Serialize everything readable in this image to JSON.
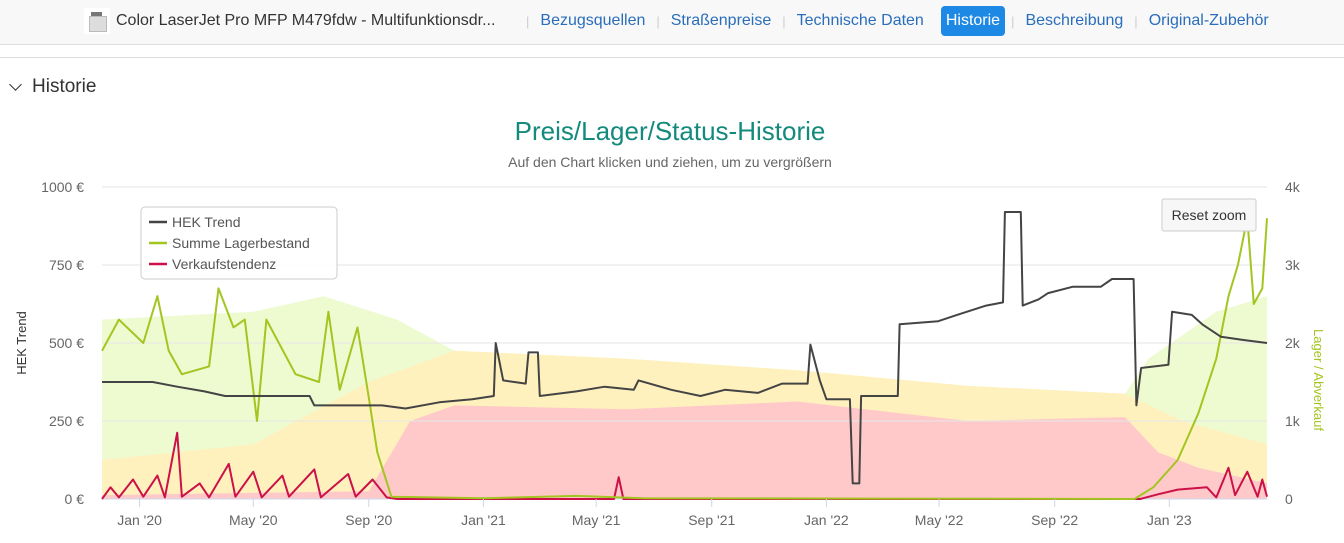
{
  "header": {
    "product_title": "Color LaserJet Pro MFP M479fdw - Multifunktionsdr...",
    "nav": [
      "Bezugsquellen",
      "Straßenpreise",
      "Technische Daten",
      "Historie",
      "Beschreibung",
      "Original-Zubehör"
    ],
    "active_nav": "Historie"
  },
  "section": {
    "title": "Historie"
  },
  "chart_data": {
    "type": "line",
    "title": "Preis/Lager/Status-Historie",
    "subtitle": "Auf den Chart klicken und ziehen, um zu vergrößern",
    "ylabel": "HEK Trend",
    "y2label": "Lager / Abverkauf",
    "ylim": [
      0,
      1000
    ],
    "y2lim": [
      0,
      4000
    ],
    "yticks": [
      "0 €",
      "250 €",
      "500 €",
      "750 €",
      "1000 €"
    ],
    "y2ticks": [
      "0",
      "1k",
      "2k",
      "3k",
      "4k"
    ],
    "xlim": [
      "2019-11-22",
      "2023-04-15"
    ],
    "xticks": [
      [
        "2020-01-01",
        "Jan '20"
      ],
      [
        "2020-05-01",
        "May '20"
      ],
      [
        "2020-09-01",
        "Sep '20"
      ],
      [
        "2021-01-01",
        "Jan '21"
      ],
      [
        "2021-05-01",
        "May '21"
      ],
      [
        "2021-09-01",
        "Sep '21"
      ],
      [
        "2022-01-01",
        "Jan '22"
      ],
      [
        "2022-05-01",
        "May '22"
      ],
      [
        "2022-09-01",
        "Sep '22"
      ],
      [
        "2023-01-01",
        "Jan '23"
      ]
    ],
    "grid": true,
    "legend_position": "top-left",
    "reset_zoom_label": "Reset zoom",
    "colors": {
      "hek": "#444444",
      "lager": "#a3c520",
      "verkauf": "#cc1149",
      "band_red": "#ffc9c9",
      "band_yellow": "#fff1bd",
      "band_green": "#eefad0",
      "title": "#138a7c"
    },
    "series": [
      {
        "name": "HEK Trend",
        "axis": "left",
        "color": "#444444",
        "points": [
          [
            "2019-11-22",
            375
          ],
          [
            "2020-01-15",
            375
          ],
          [
            "2020-02-10",
            360
          ],
          [
            "2020-03-10",
            345
          ],
          [
            "2020-04-01",
            330
          ],
          [
            "2020-06-30",
            330
          ],
          [
            "2020-07-05",
            300
          ],
          [
            "2020-09-15",
            300
          ],
          [
            "2020-10-10",
            290
          ],
          [
            "2020-11-15",
            310
          ],
          [
            "2020-12-20",
            320
          ],
          [
            "2021-01-12",
            330
          ],
          [
            "2021-01-14",
            500
          ],
          [
            "2021-01-22",
            380
          ],
          [
            "2021-02-15",
            370
          ],
          [
            "2021-02-18",
            470
          ],
          [
            "2021-02-28",
            470
          ],
          [
            "2021-03-02",
            330
          ],
          [
            "2021-04-10",
            345
          ],
          [
            "2021-05-10",
            360
          ],
          [
            "2021-06-10",
            350
          ],
          [
            "2021-06-15",
            380
          ],
          [
            "2021-07-20",
            350
          ],
          [
            "2021-08-20",
            330
          ],
          [
            "2021-09-15",
            350
          ],
          [
            "2021-10-20",
            340
          ],
          [
            "2021-11-15",
            370
          ],
          [
            "2021-12-12",
            370
          ],
          [
            "2021-12-15",
            495
          ],
          [
            "2021-12-25",
            380
          ],
          [
            "2022-01-01",
            320
          ],
          [
            "2022-01-26",
            320
          ],
          [
            "2022-01-29",
            50
          ],
          [
            "2022-02-05",
            50
          ],
          [
            "2022-02-07",
            330
          ],
          [
            "2022-03-18",
            330
          ],
          [
            "2022-03-20",
            560
          ],
          [
            "2022-04-30",
            570
          ],
          [
            "2022-05-20",
            590
          ],
          [
            "2022-06-20",
            620
          ],
          [
            "2022-07-08",
            630
          ],
          [
            "2022-07-10",
            920
          ],
          [
            "2022-07-27",
            920
          ],
          [
            "2022-07-29",
            620
          ],
          [
            "2022-08-15",
            640
          ],
          [
            "2022-08-25",
            660
          ],
          [
            "2022-09-20",
            680
          ],
          [
            "2022-10-20",
            680
          ],
          [
            "2022-11-01",
            705
          ],
          [
            "2022-11-24",
            705
          ],
          [
            "2022-11-27",
            300
          ],
          [
            "2022-12-02",
            420
          ],
          [
            "2022-12-31",
            430
          ],
          [
            "2023-01-04",
            600
          ],
          [
            "2023-01-25",
            590
          ],
          [
            "2023-02-05",
            560
          ],
          [
            "2023-02-25",
            520
          ],
          [
            "2023-03-20",
            510
          ],
          [
            "2023-04-15",
            500
          ]
        ]
      },
      {
        "name": "Summe Lagerbestand",
        "axis": "right",
        "color": "#a3c520",
        "points": [
          [
            "2019-11-22",
            1900
          ],
          [
            "2019-12-10",
            2300
          ],
          [
            "2020-01-05",
            2000
          ],
          [
            "2020-01-20",
            2600
          ],
          [
            "2020-02-01",
            1900
          ],
          [
            "2020-02-15",
            1600
          ],
          [
            "2020-03-15",
            1700
          ],
          [
            "2020-03-25",
            2700
          ],
          [
            "2020-04-10",
            2200
          ],
          [
            "2020-04-22",
            2300
          ],
          [
            "2020-05-05",
            1000
          ],
          [
            "2020-05-15",
            2300
          ],
          [
            "2020-06-15",
            1600
          ],
          [
            "2020-07-10",
            1500
          ],
          [
            "2020-07-20",
            2400
          ],
          [
            "2020-08-01",
            1400
          ],
          [
            "2020-08-20",
            2200
          ],
          [
            "2020-09-01",
            1300
          ],
          [
            "2020-09-10",
            600
          ],
          [
            "2020-09-25",
            30
          ],
          [
            "2021-01-01",
            10
          ],
          [
            "2021-04-10",
            40
          ],
          [
            "2021-06-20",
            10
          ],
          [
            "2022-11-25",
            0
          ],
          [
            "2022-12-15",
            150
          ],
          [
            "2023-01-10",
            500
          ],
          [
            "2023-02-01",
            1100
          ],
          [
            "2023-02-20",
            1800
          ],
          [
            "2023-03-05",
            2600
          ],
          [
            "2023-03-15",
            3000
          ],
          [
            "2023-03-25",
            3600
          ],
          [
            "2023-04-01",
            2500
          ],
          [
            "2023-04-10",
            2700
          ],
          [
            "2023-04-15",
            3600
          ]
        ]
      },
      {
        "name": "Verkaufstendenz",
        "axis": "right",
        "color": "#cc1149",
        "points": [
          [
            "2019-11-22",
            0
          ],
          [
            "2019-12-01",
            150
          ],
          [
            "2019-12-10",
            20
          ],
          [
            "2019-12-25",
            250
          ],
          [
            "2020-01-05",
            30
          ],
          [
            "2020-01-20",
            300
          ],
          [
            "2020-01-28",
            20
          ],
          [
            "2020-02-10",
            850
          ],
          [
            "2020-02-15",
            30
          ],
          [
            "2020-03-05",
            200
          ],
          [
            "2020-03-15",
            20
          ],
          [
            "2020-04-05",
            450
          ],
          [
            "2020-04-12",
            30
          ],
          [
            "2020-05-01",
            350
          ],
          [
            "2020-05-10",
            20
          ],
          [
            "2020-06-01",
            300
          ],
          [
            "2020-06-08",
            30
          ],
          [
            "2020-07-05",
            380
          ],
          [
            "2020-07-12",
            20
          ],
          [
            "2020-08-10",
            320
          ],
          [
            "2020-08-18",
            30
          ],
          [
            "2020-09-05",
            250
          ],
          [
            "2020-09-20",
            20
          ],
          [
            "2020-10-01",
            0
          ],
          [
            "2021-05-20",
            0
          ],
          [
            "2021-05-25",
            280
          ],
          [
            "2021-05-30",
            0
          ],
          [
            "2022-12-01",
            0
          ],
          [
            "2022-12-20",
            60
          ],
          [
            "2023-01-10",
            120
          ],
          [
            "2023-02-10",
            150
          ],
          [
            "2023-02-20",
            20
          ],
          [
            "2023-03-05",
            400
          ],
          [
            "2023-03-12",
            50
          ],
          [
            "2023-03-25",
            350
          ],
          [
            "2023-04-05",
            30
          ],
          [
            "2023-04-10",
            250
          ],
          [
            "2023-04-15",
            30
          ]
        ]
      }
    ],
    "bands": [
      {
        "name": "red",
        "color": "#ffc9c9",
        "points": [
          [
            "2019-11-22",
            50
          ],
          [
            "2020-09-01",
            100
          ],
          [
            "2020-10-15",
            1000
          ],
          [
            "2020-12-01",
            1200
          ],
          [
            "2021-06-01",
            1150
          ],
          [
            "2021-12-01",
            1250
          ],
          [
            "2022-06-01",
            1000
          ],
          [
            "2022-11-15",
            1050
          ],
          [
            "2022-12-20",
            600
          ],
          [
            "2023-02-01",
            400
          ],
          [
            "2023-04-15",
            200
          ]
        ]
      },
      {
        "name": "yellow",
        "color": "#fff1bd",
        "points": [
          [
            "2019-11-22",
            500
          ],
          [
            "2020-05-01",
            700
          ],
          [
            "2020-09-01",
            1500
          ],
          [
            "2020-12-01",
            1900
          ],
          [
            "2021-06-01",
            1800
          ],
          [
            "2021-12-01",
            1650
          ],
          [
            "2022-06-01",
            1450
          ],
          [
            "2022-11-15",
            1350
          ],
          [
            "2023-01-15",
            1000
          ],
          [
            "2023-04-15",
            700
          ]
        ]
      },
      {
        "name": "green",
        "color": "#eefad0",
        "points": [
          [
            "2019-11-22",
            2300
          ],
          [
            "2020-05-01",
            2400
          ],
          [
            "2020-07-15",
            2600
          ],
          [
            "2020-10-01",
            2300
          ],
          [
            "2020-12-01",
            1900
          ],
          [
            "2021-06-01",
            1800
          ],
          [
            "2021-12-01",
            1650
          ],
          [
            "2022-06-01",
            1450
          ],
          [
            "2022-11-15",
            1350
          ],
          [
            "2022-12-10",
            1800
          ],
          [
            "2023-01-15",
            2100
          ],
          [
            "2023-02-20",
            2400
          ],
          [
            "2023-04-15",
            2600
          ]
        ]
      }
    ]
  }
}
